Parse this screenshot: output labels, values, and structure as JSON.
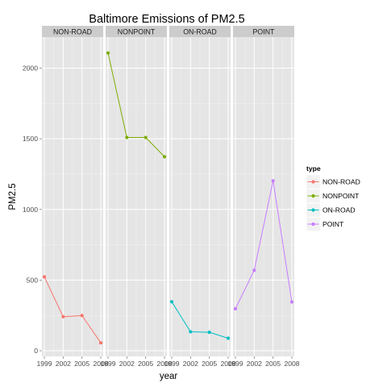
{
  "chart_data": {
    "type": "line",
    "title": "Baltimore Emissions of PM2.5",
    "xlabel": "year",
    "ylabel": "PM2.5",
    "x": [
      1999,
      2002,
      2005,
      2008
    ],
    "x_ticks": [
      "1999",
      "2002",
      "2005",
      "2008"
    ],
    "y_ticks": [
      0,
      500,
      1000,
      1500,
      2000
    ],
    "ylim": [
      -40,
      2220
    ],
    "xlim": [
      1999,
      2008
    ],
    "facets": [
      "NON-ROAD",
      "NONPOINT",
      "ON-ROAD",
      "POINT"
    ],
    "grid": true,
    "legend_title": "type",
    "legend_position": "right",
    "series": [
      {
        "name": "NON-ROAD",
        "color": "#F8766D",
        "values": [
          522.94,
          240.85,
          248.93,
          55.82
        ]
      },
      {
        "name": "NONPOINT",
        "color": "#7CAE00",
        "values": [
          2107.63,
          1509.5,
          1509.5,
          1373.21
        ]
      },
      {
        "name": "ON-ROAD",
        "color": "#00BFC4",
        "values": [
          346.82,
          134.31,
          130.43,
          88.28
        ]
      },
      {
        "name": "POINT",
        "color": "#C77CFF",
        "values": [
          296.8,
          569.26,
          1202.49,
          344.98
        ]
      }
    ]
  }
}
